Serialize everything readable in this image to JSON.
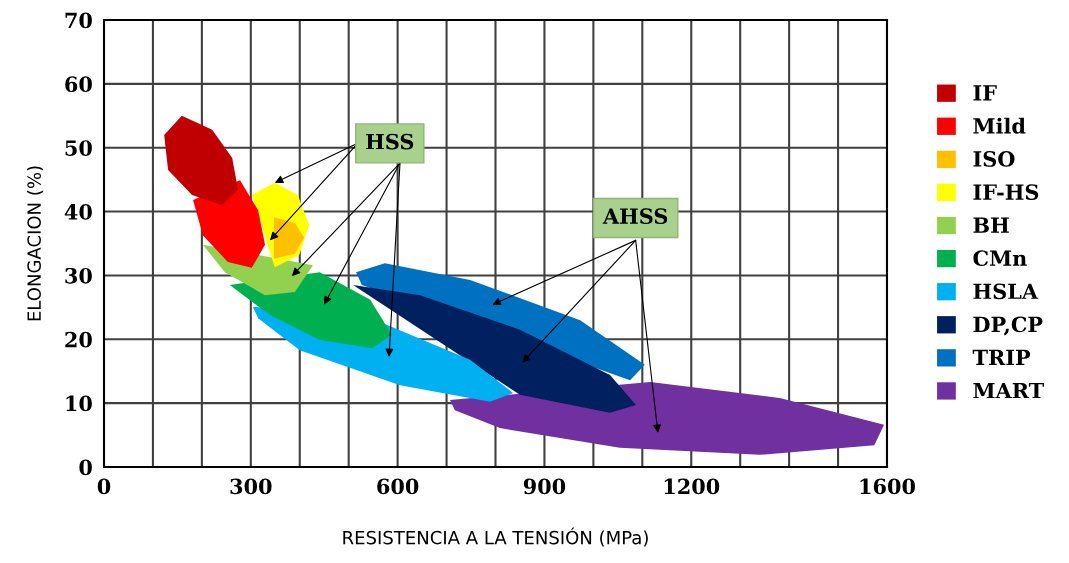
{
  "chart_data": {
    "type": "area",
    "xlabel": "RESISTENCIA A LA TENSIÓN (MPa)",
    "ylabel": "ELONGACION (%)",
    "xlim": [
      0,
      1600
    ],
    "ylim": [
      0,
      70
    ],
    "xticks": [
      0,
      {
        "value": 100,
        "label": null
      },
      {
        "value": 200,
        "label": null
      },
      300,
      {
        "value": 400,
        "label": null
      },
      {
        "value": 500,
        "label": null
      },
      600,
      {
        "value": 700,
        "label": null
      },
      {
        "value": 800,
        "label": null
      },
      900,
      {
        "value": 1000,
        "label": null
      },
      {
        "value": 1100,
        "label": null
      },
      1200,
      {
        "value": 1300,
        "label": null
      },
      {
        "value": 1400,
        "label": null
      },
      {
        "value": 1500,
        "label": null
      },
      1600
    ],
    "yticks": [
      0,
      10,
      20,
      30,
      40,
      50,
      60,
      70
    ],
    "grid": true,
    "legend": "right",
    "annotations": [
      {
        "text": "HSS",
        "x": 349,
        "y": 44.5
      },
      "AHSS"
    ],
    "series": [
      {
        "name": "IF",
        "color": "#c00000",
        "x": [
          159,
          221,
          262,
          274,
          241,
          180,
          131,
          123
        ],
        "values": [
          55.0,
          52.8,
          48.4,
          43.4,
          41.0,
          42.6,
          46.5,
          52.0
        ]
      },
      {
        "name": "Mild",
        "color": "#ff0000",
        "x": [
          null,
          278,
          315,
          329,
          302,
          253,
          202,
          182
        ],
        "values": [
          null,
          44.9,
          40.2,
          34.8,
          31.2,
          32.1,
          36.3,
          41.8
        ]
      },
      {
        "name": "ISO",
        "color": "#ffc000",
        "x": [
          409,
          390,
          347,
          null,
          null,
          null,
          347,
          390
        ],
        "values": [
          35.9,
          38.2,
          39.1,
          null,
          null,
          null,
          32.6,
          33.4
        ]
      },
      {
        "name": "IF-HS",
        "color": "#ffff00",
        "x": [
          349,
          396,
          419,
          399,
          349,
          null,
          null,
          302
        ],
        "values": [
          44.5,
          42.6,
          37.9,
          33.2,
          31.3,
          null,
          null,
          42.6
        ]
      },
      {
        "name": "BH",
        "color": "#92d050",
        "x": [
          null,
          null,
          null,
          427,
          390,
          329,
          247,
          202
        ],
        "values": [
          null,
          null,
          null,
          31.6,
          27.4,
          26.9,
          30.5,
          34.8
        ]
      },
      {
        "name": "CMn",
        "color": "#00b050",
        "x": [
          null,
          441,
          544,
          588,
          548,
          441,
          339,
          257
        ],
        "values": [
          null,
          30.5,
          26.2,
          20.7,
          18.6,
          19.9,
          23.8,
          28.5
        ]
      },
      {
        "name": "HSLA",
        "color": "#00b0f0",
        "x": [
          304,
          null,
          564,
          748,
          836,
          789,
          605,
          400,
          315
        ],
        "values": [
          25.1,
          null,
          22.7,
          16.8,
          11.6,
          10.2,
          12.8,
          18.3,
          23.3
        ]
      },
      {
        "name": "DP,CP",
        "color": "#002060",
        "x": [
          509,
          646,
          850,
          1034,
          1087,
          1034,
          850,
          null,
          null
        ],
        "values": [
          28.5,
          26.9,
          21.5,
          14.4,
          9.7,
          8.5,
          11.3,
          null,
          null
        ]
      },
      {
        "name": "TRIP",
        "color": "#0070c0",
        "x": [
          515,
          574,
          748,
          973,
          1105,
          1075,
          null,
          null,
          527
        ],
        "values": [
          30.5,
          31.9,
          29.3,
          23.0,
          16.0,
          13.6,
          null,
          null,
          28.5
        ]
      },
      {
        "name": "MART",
        "color": "#7030a0",
        "x": [
          707,
          null,
          1116,
          1381,
          1594,
          1574,
          1340,
          1054,
          809,
          717
        ],
        "values": [
          10.5,
          null,
          13.3,
          10.8,
          6.6,
          3.4,
          1.9,
          3.0,
          6.1,
          8.9
        ]
      }
    ]
  }
}
